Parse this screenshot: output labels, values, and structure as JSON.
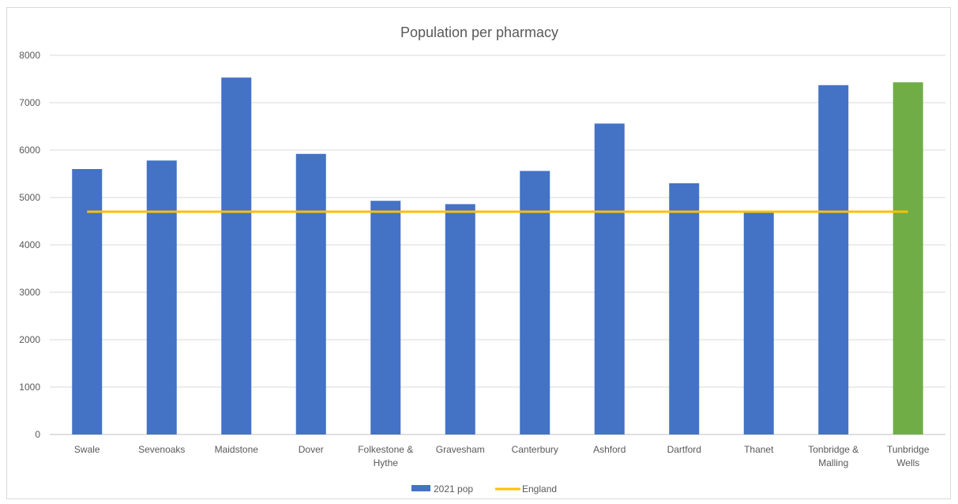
{
  "chart_data": {
    "type": "bar",
    "title": "Population per pharmacy",
    "categories": [
      [
        "Swale"
      ],
      [
        "Sevenoaks"
      ],
      [
        "Maidstone"
      ],
      [
        "Dover"
      ],
      [
        "Folkestone &",
        "Hythe"
      ],
      [
        "Gravesham"
      ],
      [
        "Canterbury"
      ],
      [
        "Ashford"
      ],
      [
        "Dartford"
      ],
      [
        "Thanet"
      ],
      [
        "Tonbridge &",
        "Malling"
      ],
      [
        "Tunbridge",
        "Wells"
      ]
    ],
    "series": [
      {
        "name": "2021 pop",
        "type": "bar",
        "values": [
          5600,
          5780,
          7530,
          5920,
          4930,
          4860,
          5560,
          6560,
          5300,
          4690,
          7370,
          7430
        ],
        "color": "#4472c4",
        "highlight": {
          "index": 11,
          "color": "#70ad47"
        }
      },
      {
        "name": "England",
        "type": "line",
        "values": [
          4700,
          4700,
          4700,
          4700,
          4700,
          4700,
          4700,
          4700,
          4700,
          4700,
          4700,
          4700
        ],
        "color": "#ffc000"
      }
    ],
    "ylim": [
      0,
      8000
    ],
    "yticks": [
      "0",
      "1000",
      "2000",
      "3000",
      "4000",
      "5000",
      "6000",
      "7000",
      "8000"
    ],
    "xlabel": "",
    "ylabel": "",
    "grid": true,
    "legend_position": "bottom"
  }
}
